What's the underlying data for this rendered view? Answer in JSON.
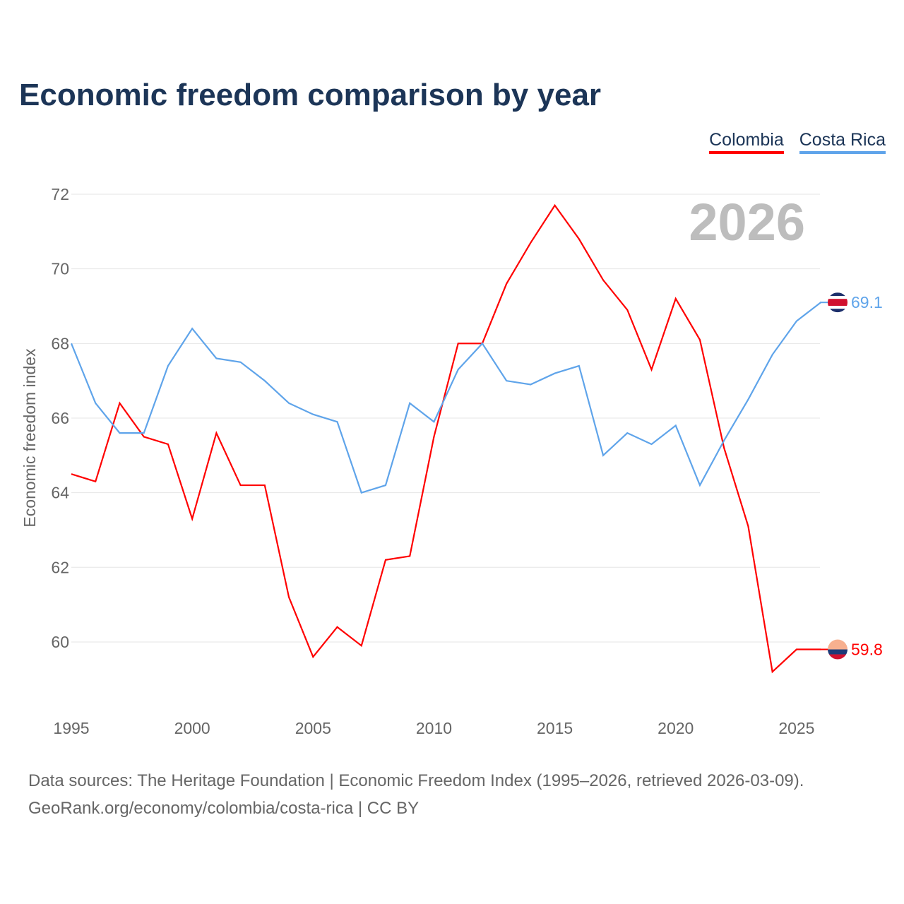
{
  "title": "Economic freedom comparison by year",
  "chart_data": {
    "type": "line",
    "title": "Economic freedom comparison by year",
    "xlabel": "",
    "ylabel": "Economic freedom index",
    "x": [
      1995,
      1996,
      1997,
      1998,
      1999,
      2000,
      2001,
      2002,
      2003,
      2004,
      2005,
      2006,
      2007,
      2008,
      2009,
      2010,
      2011,
      2012,
      2013,
      2014,
      2015,
      2016,
      2017,
      2018,
      2019,
      2020,
      2021,
      2022,
      2023,
      2024,
      2025,
      2026
    ],
    "xticks": [
      "1995",
      "2000",
      "2005",
      "2010",
      "2015",
      "2020",
      "2025"
    ],
    "yticks": [
      "60",
      "62",
      "64",
      "66",
      "68",
      "70",
      "72"
    ],
    "ylim": [
      58.4,
      72.2
    ],
    "grid": true,
    "legend_placement": "top-right",
    "watermark_year": "2026",
    "series": [
      {
        "name": "Colombia",
        "color": "#ff0000",
        "end_label": "59.8",
        "values": [
          64.5,
          64.3,
          66.4,
          65.5,
          65.3,
          63.3,
          65.6,
          64.2,
          64.2,
          61.2,
          59.6,
          60.4,
          59.9,
          62.2,
          62.3,
          65.5,
          68.0,
          68.0,
          69.6,
          70.7,
          71.7,
          70.8,
          69.7,
          68.9,
          67.3,
          69.2,
          68.1,
          65.2,
          63.1,
          59.2,
          59.8,
          59.8
        ]
      },
      {
        "name": "Costa Rica",
        "color": "#5fa4ea",
        "end_label": "69.1",
        "values": [
          68.0,
          66.4,
          65.6,
          65.6,
          67.4,
          68.4,
          67.6,
          67.5,
          67.0,
          66.4,
          66.1,
          65.9,
          64.0,
          64.2,
          66.4,
          65.9,
          67.3,
          68.0,
          67.0,
          66.9,
          67.2,
          67.4,
          65.0,
          65.6,
          65.3,
          65.8,
          64.2,
          65.4,
          66.5,
          67.7,
          68.6,
          69.1
        ]
      }
    ]
  },
  "source_line1": "Data sources: The Heritage Foundation | Economic Freedom Index (1995–2026, retrieved 2026-03-09).",
  "source_line2": "GeoRank.org/economy/colombia/costa-rica | CC BY"
}
